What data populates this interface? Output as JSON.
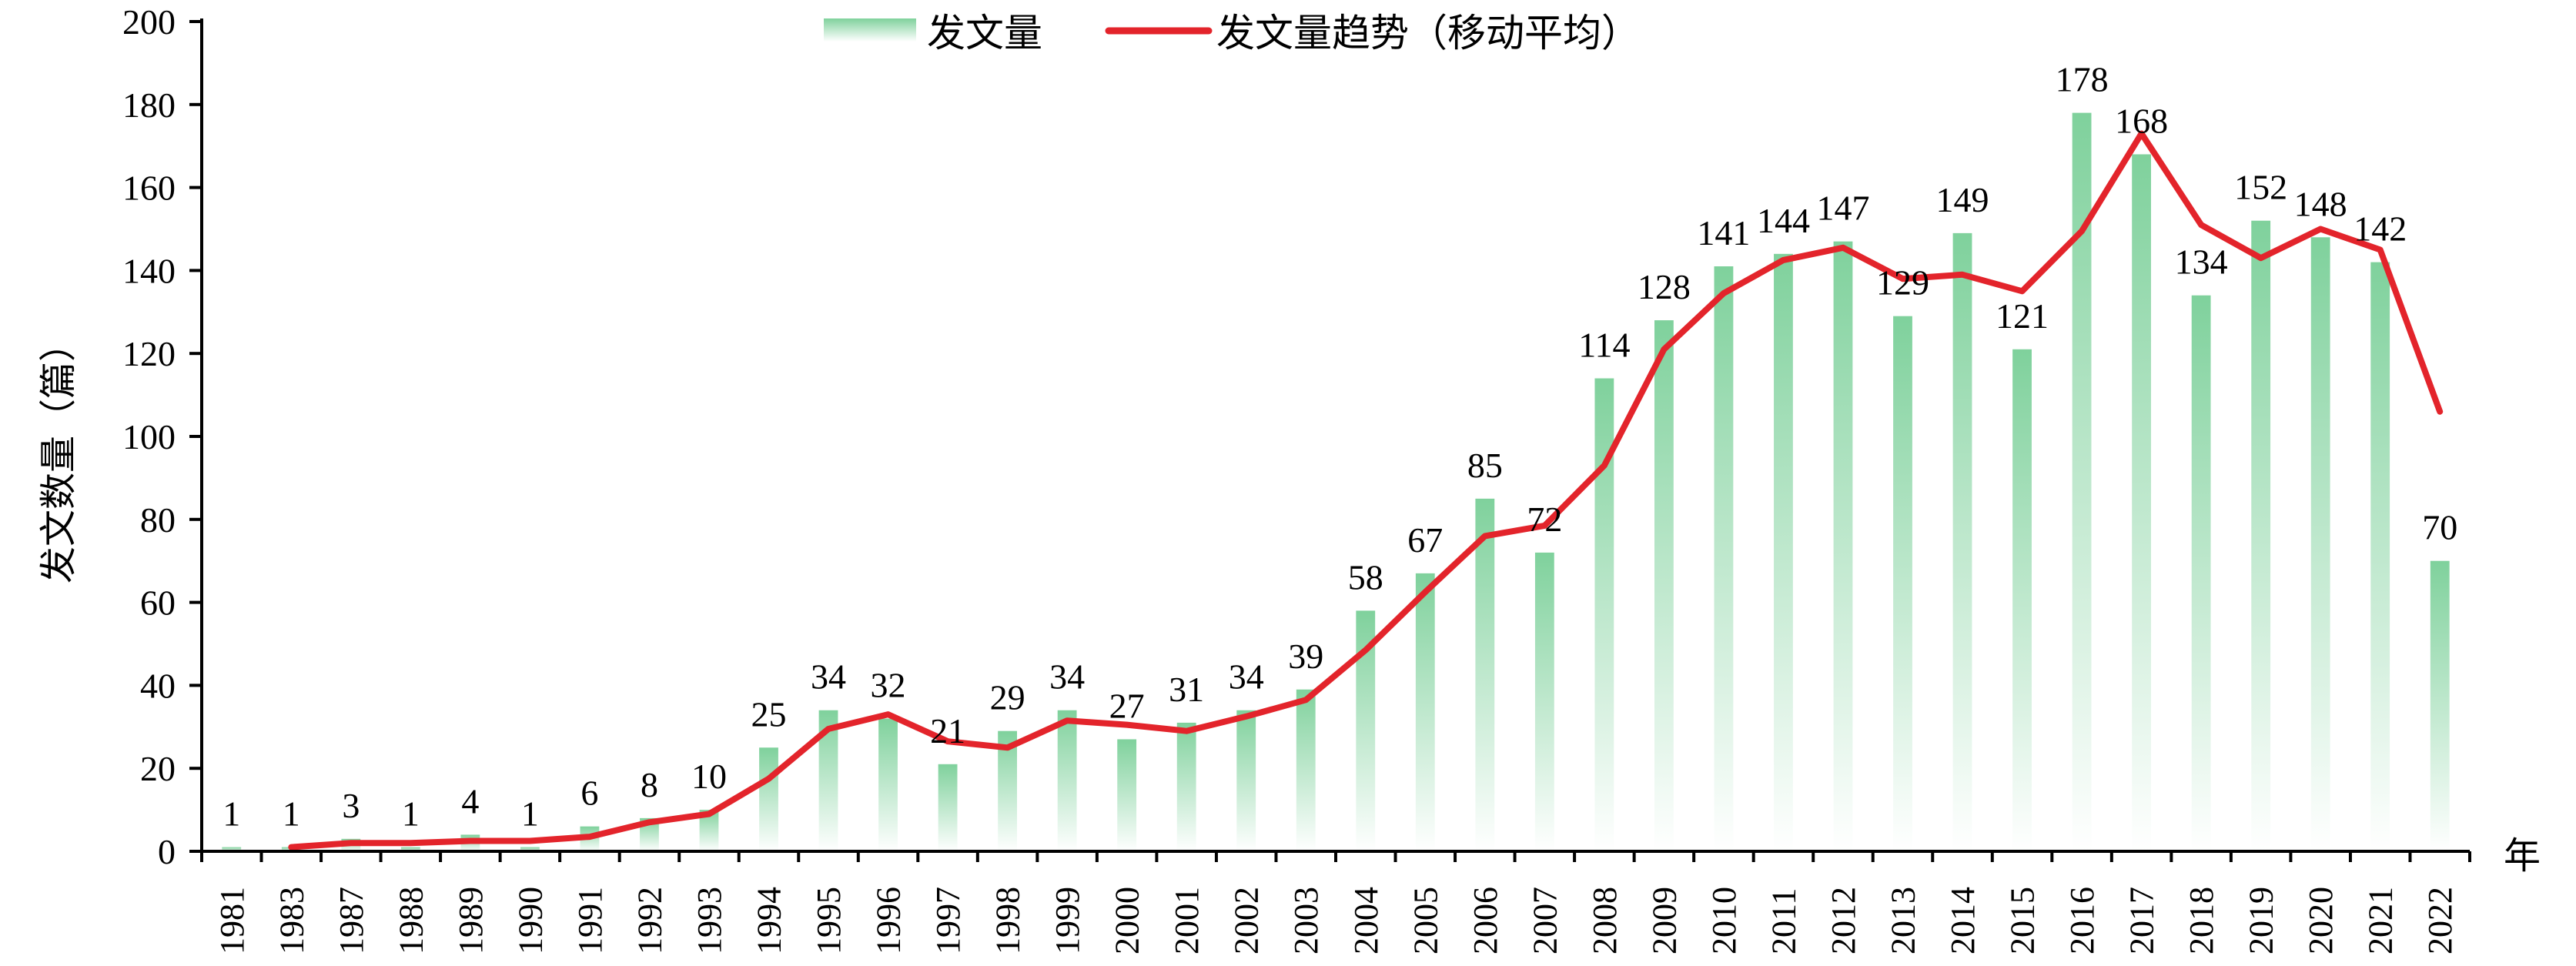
{
  "chart_data": {
    "type": "bar",
    "title": "",
    "xlabel": "年",
    "ylabel": "发文数量（篇）",
    "ylim": [
      0,
      200
    ],
    "yticks": [
      0,
      20,
      40,
      60,
      80,
      100,
      120,
      140,
      160,
      180,
      200
    ],
    "grid": false,
    "legend_position": "top-center",
    "categories": [
      "1981",
      "1983",
      "1987",
      "1988",
      "1989",
      "1990",
      "1991",
      "1992",
      "1993",
      "1994",
      "1995",
      "1996",
      "1997",
      "1998",
      "1999",
      "2000",
      "2001",
      "2002",
      "2003",
      "2004",
      "2005",
      "2006",
      "2007",
      "2008",
      "2009",
      "2010",
      "2011",
      "2012",
      "2013",
      "2014",
      "2015",
      "2016",
      "2017",
      "2018",
      "2019",
      "2020",
      "2021",
      "2022"
    ],
    "series": [
      {
        "name": "发文量",
        "type": "bar",
        "color": "#7fd19c",
        "values": [
          1,
          1,
          3,
          1,
          4,
          1,
          6,
          8,
          10,
          25,
          34,
          32,
          21,
          29,
          34,
          27,
          31,
          34,
          39,
          58,
          67,
          85,
          72,
          114,
          128,
          141,
          144,
          147,
          129,
          149,
          121,
          178,
          168,
          134,
          152,
          148,
          142,
          70
        ]
      },
      {
        "name": "发文量趋势（移动平均）",
        "type": "line",
        "color": "#e3242b",
        "values": [
          null,
          1,
          2,
          2,
          2.5,
          2.5,
          3.5,
          7,
          9,
          17.5,
          29.5,
          33,
          26.5,
          25,
          31.5,
          30.5,
          29,
          32.5,
          36.5,
          48.5,
          62.5,
          76,
          78.5,
          93,
          121,
          134.5,
          142.5,
          145.5,
          138,
          139,
          135,
          149.5,
          173,
          151,
          143,
          150,
          145,
          106
        ]
      }
    ]
  }
}
